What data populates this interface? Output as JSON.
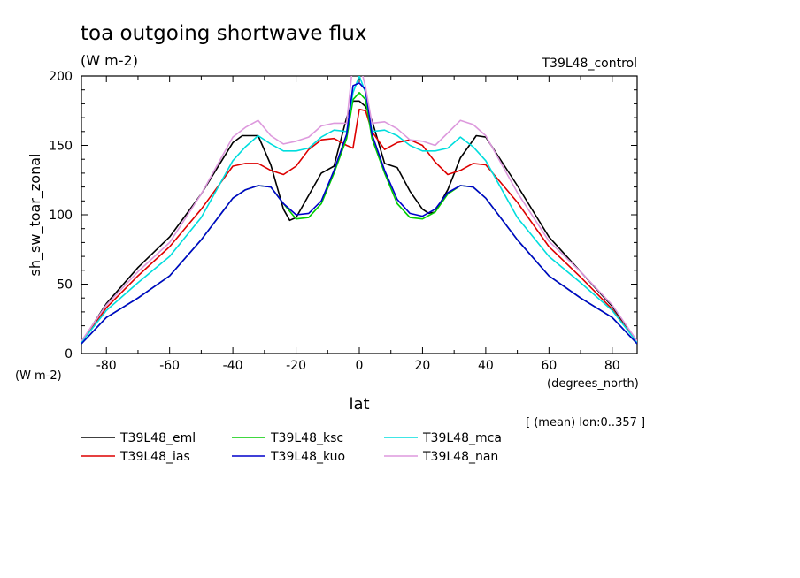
{
  "chart_data": {
    "type": "line",
    "title": "toa outgoing shortwave flux",
    "subtitle": "(W m-2)",
    "experiment": "T39L48_control",
    "ylabel": "sh_sw_toar_zonal",
    "yunits": "(W m-2)",
    "xlabel": "lat",
    "xunits": "(degrees_north)",
    "note": "[ (mean) lon:0..357 ]",
    "xlim": [
      -87.9,
      87.9
    ],
    "ylim": [
      0,
      200
    ],
    "xticks": [
      -80,
      -60,
      -40,
      -20,
      0,
      20,
      40,
      60,
      80
    ],
    "yticks": [
      0,
      50,
      100,
      150,
      200
    ],
    "grid": false,
    "legend_position": "below",
    "series": [
      {
        "name": "T39L48_eml",
        "color": "#000000",
        "x": [
          -87.9,
          -80,
          -70,
          -60,
          -50,
          -40,
          -37,
          -32,
          -28,
          -24,
          -22,
          -20,
          -16,
          -12,
          -8,
          -4,
          -2,
          0,
          2,
          4,
          8,
          12,
          16,
          20,
          22,
          24,
          28,
          32,
          37,
          40,
          50,
          60,
          70,
          80,
          87.9
        ],
        "y": [
          8,
          36,
          62,
          84,
          115,
          152,
          157,
          157,
          136,
          104,
          96,
          98,
          114,
          130,
          135,
          170,
          182,
          182,
          178,
          168,
          137,
          134,
          117,
          104,
          101,
          102,
          118,
          141,
          157,
          156,
          121,
          84,
          59,
          34,
          8
        ]
      },
      {
        "name": "T39L48_ias",
        "color": "#dd0000",
        "x": [
          -87.9,
          -80,
          -70,
          -60,
          -50,
          -40,
          -36,
          -32,
          -28,
          -24,
          -20,
          -16,
          -12,
          -8,
          -4,
          -2,
          0,
          2,
          4,
          8,
          12,
          16,
          20,
          24,
          28,
          32,
          36,
          40,
          50,
          60,
          70,
          80,
          87.9
        ],
        "y": [
          8,
          33,
          56,
          77,
          104,
          135,
          137,
          137,
          132,
          129,
          135,
          147,
          154,
          155,
          150,
          148,
          176,
          175,
          160,
          147,
          152,
          154,
          150,
          138,
          129,
          132,
          137,
          136,
          109,
          77,
          55,
          32,
          8
        ]
      },
      {
        "name": "T39L48_ksc",
        "color": "#00cc00",
        "x": [
          -87.9,
          -80,
          -70,
          -60,
          -50,
          -40,
          -36,
          -32,
          -28,
          -24,
          -20,
          -16,
          -12,
          -8,
          -4,
          -2,
          0,
          2,
          4,
          8,
          12,
          16,
          20,
          24,
          28,
          32,
          36,
          40,
          50,
          60,
          70,
          80,
          87.9
        ],
        "y": [
          7,
          26,
          40,
          56,
          82,
          112,
          118,
          121,
          120,
          108,
          97,
          98,
          108,
          130,
          155,
          183,
          188,
          183,
          155,
          130,
          108,
          98,
          97,
          102,
          115,
          121,
          120,
          112,
          82,
          56,
          40,
          26,
          7
        ]
      },
      {
        "name": "T39L48_mca",
        "color": "#00dddd",
        "x": [
          -87.9,
          -80,
          -70,
          -60,
          -50,
          -40,
          -36,
          -32,
          -28,
          -24,
          -20,
          -16,
          -12,
          -8,
          -4,
          -2,
          0,
          2,
          4,
          8,
          12,
          16,
          20,
          24,
          28,
          32,
          36,
          40,
          50,
          60,
          70,
          80,
          87.9
        ],
        "y": [
          8,
          31,
          51,
          70,
          98,
          139,
          149,
          157,
          151,
          146,
          146,
          148,
          156,
          161,
          160,
          188,
          200,
          188,
          160,
          161,
          157,
          150,
          146,
          146,
          148,
          156,
          149,
          139,
          98,
          70,
          51,
          31,
          8
        ]
      },
      {
        "name": "T39L48_kuo",
        "color": "#0000cc",
        "x": [
          -87.9,
          -80,
          -70,
          -60,
          -50,
          -40,
          -36,
          -32,
          -28,
          -24,
          -20,
          -16,
          -12,
          -8,
          -4,
          -2,
          0,
          2,
          4,
          8,
          12,
          16,
          20,
          24,
          28,
          32,
          36,
          40,
          50,
          60,
          70,
          80,
          87.9
        ],
        "y": [
          7,
          26,
          40,
          56,
          82,
          112,
          118,
          121,
          120,
          108,
          100,
          101,
          110,
          132,
          158,
          193,
          195,
          190,
          158,
          132,
          111,
          101,
          99,
          104,
          116,
          121,
          120,
          112,
          82,
          56,
          40,
          26,
          7
        ]
      },
      {
        "name": "T39L48_nan",
        "color": "#dd99dd",
        "x": [
          -87.9,
          -80,
          -70,
          -60,
          -50,
          -40,
          -36,
          -32,
          -28,
          -24,
          -20,
          -16,
          -12,
          -8,
          -4,
          -2,
          0,
          2,
          4,
          8,
          12,
          16,
          20,
          24,
          28,
          32,
          36,
          40,
          50,
          60,
          70,
          80,
          87.9
        ],
        "y": [
          9,
          35,
          59,
          80,
          115,
          156,
          163,
          168,
          157,
          151,
          153,
          156,
          164,
          166,
          166,
          210,
          210,
          192,
          166,
          167,
          162,
          154,
          153,
          150,
          159,
          168,
          165,
          157,
          116,
          81,
          59,
          35,
          9
        ]
      }
    ]
  }
}
